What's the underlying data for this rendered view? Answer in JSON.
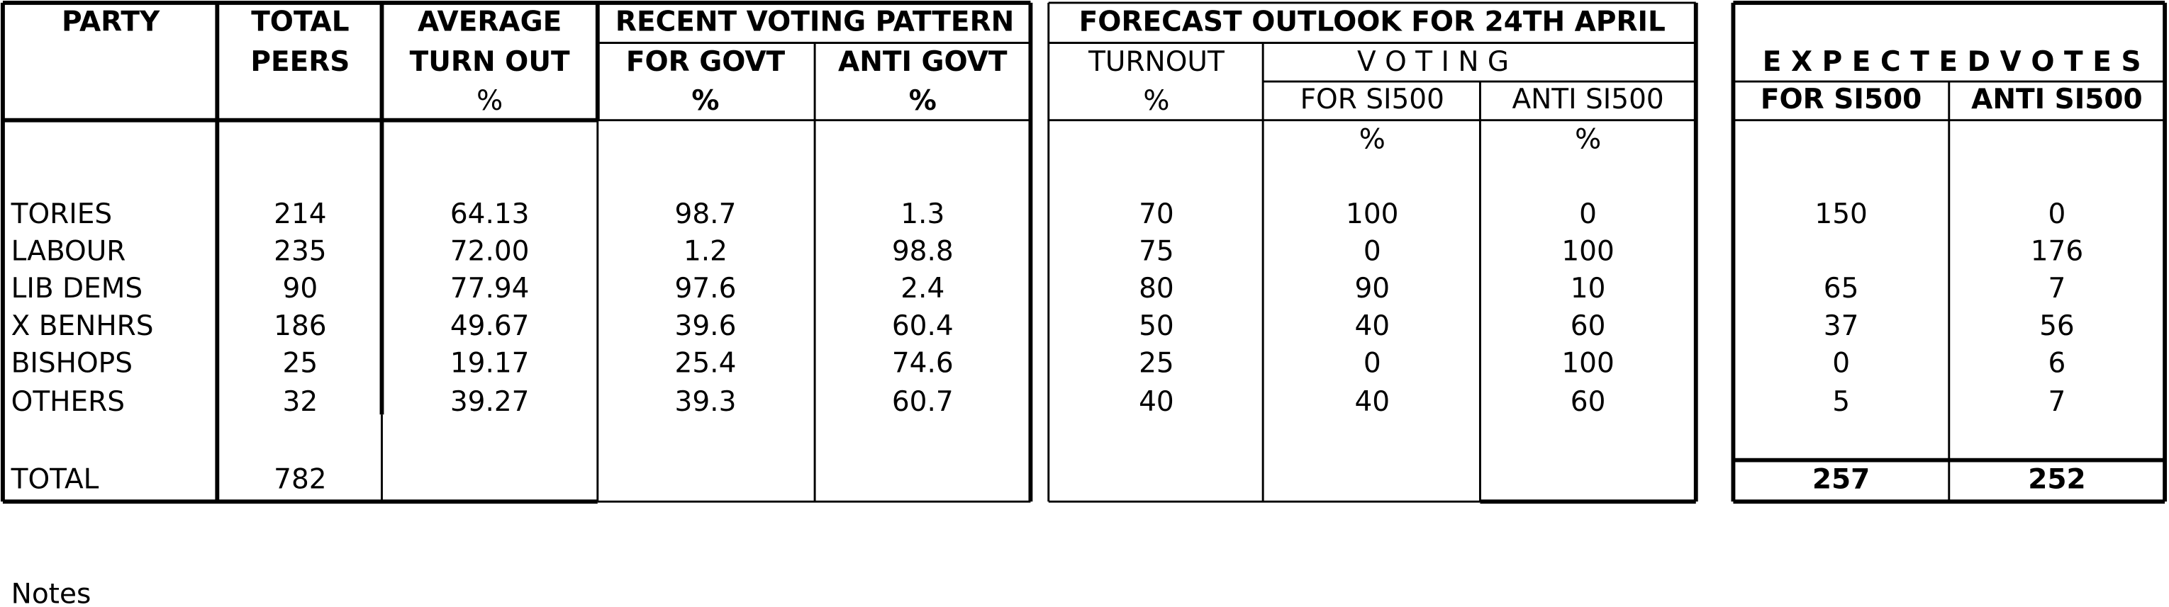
{
  "table": {
    "header": {
      "party": "PARTY",
      "total_peers": [
        "TOTAL",
        "PEERS"
      ],
      "average_turnout": [
        "AVERAGE",
        "TURN OUT",
        "%"
      ],
      "recent_voting_pattern": "RECENT VOTING PATTERN",
      "for_govt": [
        "FOR GOVT",
        "%"
      ],
      "anti_govt": [
        "ANTI GOVT",
        "%"
      ],
      "forecast": "FORECAST OUTLOOK FOR 24TH APRIL",
      "turnout": [
        "TURNOUT",
        "%"
      ],
      "voting": "V O T I N G",
      "for_si500": [
        "FOR SI500",
        "%"
      ],
      "anti_si500": [
        "ANTI SI500",
        "%"
      ],
      "expected_votes": "E X P E C T E D V O T E S",
      "expected_for": "FOR SI500",
      "expected_anti": "ANTI SI500"
    },
    "rows": [
      [
        "TORIES",
        "214",
        "64.13",
        "98.7",
        "1.3",
        "70",
        "100",
        "0",
        "150",
        "0"
      ],
      [
        "LABOUR",
        "235",
        "72.00",
        "1.2",
        "98.8",
        "75",
        "0",
        "100",
        null,
        "176"
      ],
      [
        "LIB DEMS",
        "90",
        "77.94",
        "97.6",
        "2.4",
        "80",
        "90",
        "10",
        "65",
        "7"
      ],
      [
        "X BENHRS",
        "186",
        "49.67",
        "39.6",
        "60.4",
        "50",
        "40",
        "60",
        "37",
        "56"
      ],
      [
        "BISHOPS",
        "25",
        "19.17",
        "25.4",
        "74.6",
        "25",
        "0",
        "100",
        "0",
        "6"
      ],
      [
        "OTHERS",
        "32",
        "39.27",
        "39.3",
        "60.7",
        "40",
        "40",
        "60",
        "5",
        "7"
      ]
    ],
    "total": {
      "label": "TOTAL",
      "peers": "782",
      "expected_for": "257",
      "expected_anti": "252"
    },
    "notes": "Notes"
  }
}
